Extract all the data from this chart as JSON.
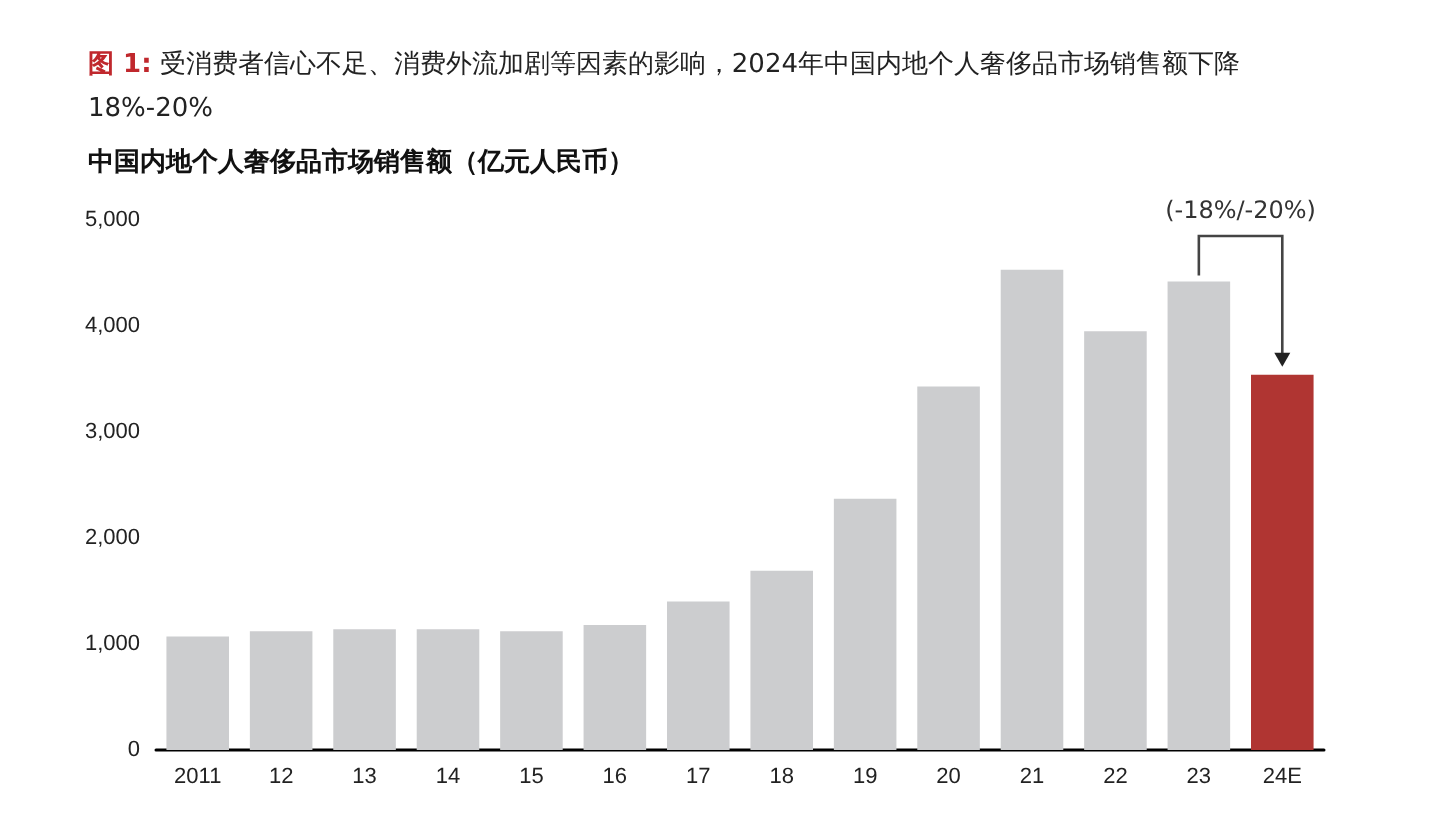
{
  "chart_data": {
    "type": "bar",
    "title": "图 1: 受消费者信心不足、消费外流加剧等因素的影响，2024年中国内地个人奢侈品市场销售额下降18%-20%",
    "subtitle": "中国内地个人奢侈品市场销售额（亿元人民币）",
    "categories": [
      "2011",
      "12",
      "13",
      "14",
      "15",
      "16",
      "17",
      "18",
      "19",
      "20",
      "21",
      "22",
      "23",
      "24E"
    ],
    "values": [
      1070,
      1120,
      1140,
      1140,
      1120,
      1180,
      1400,
      1690,
      2370,
      3430,
      4530,
      3950,
      4420,
      3540
    ],
    "colors": [
      "#cccdcf",
      "#cccdcf",
      "#cccdcf",
      "#cccdcf",
      "#cccdcf",
      "#cccdcf",
      "#cccdcf",
      "#cccdcf",
      "#cccdcf",
      "#cccdcf",
      "#cccdcf",
      "#cccdcf",
      "#cccdcf",
      "#b03532"
    ],
    "ylim": [
      0,
      5000
    ],
    "yticks": [
      0,
      {
        "value": 1000,
        "label": "1,000"
      },
      {
        "value": 2000,
        "label": "2,000"
      },
      {
        "value": 3000,
        "label": "3,000"
      },
      {
        "value": 4000,
        "label": "4,000"
      },
      {
        "value": 5000,
        "label": "5,000"
      }
    ],
    "grid": false,
    "annotations": [
      "(-18%/-20%)"
    ]
  }
}
